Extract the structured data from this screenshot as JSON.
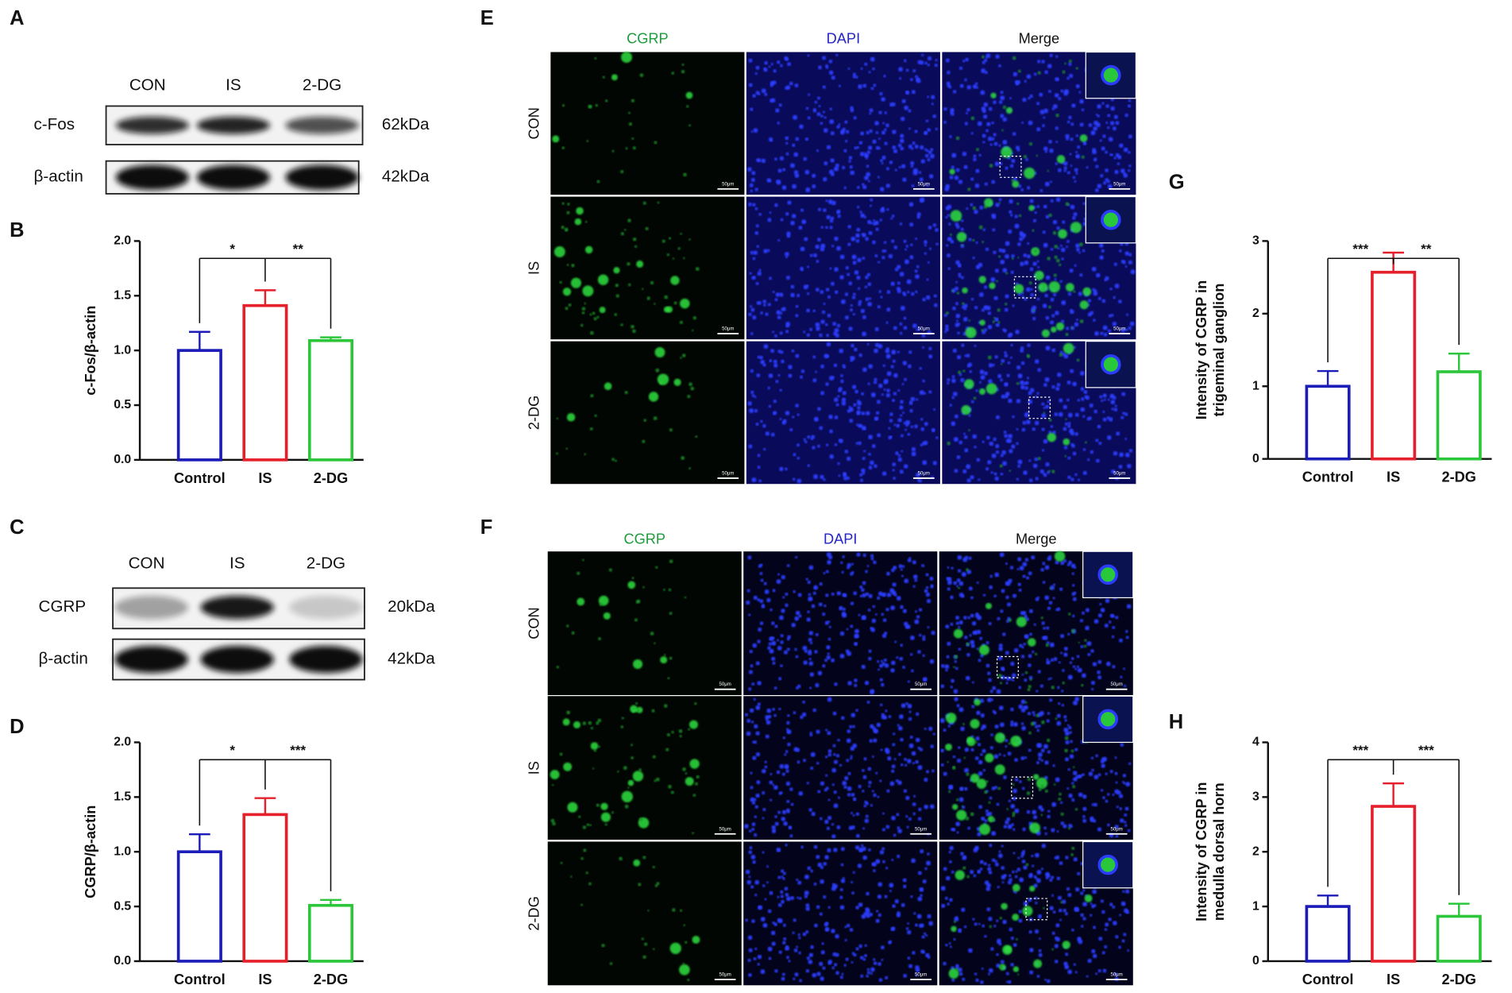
{
  "panel_labels": [
    "A",
    "B",
    "C",
    "D",
    "E",
    "F",
    "G",
    "H"
  ],
  "blots": [
    {
      "lanes": [
        "CON",
        "IS",
        "2-DG"
      ],
      "rows": [
        {
          "protein": "c-Fos",
          "size": "62kDa"
        },
        {
          "protein": "β-actin",
          "size": "42kDa"
        }
      ]
    },
    {
      "lanes": [
        "CON",
        "IS",
        "2-DG"
      ],
      "rows": [
        {
          "protein": "CGRP",
          "size": "20kDa"
        },
        {
          "protein": "β-actin",
          "size": "42kDa"
        }
      ]
    }
  ],
  "micrographs": [
    {
      "channels": [
        "CGRP",
        "DAPI",
        "Merge"
      ],
      "groups": [
        "CON",
        "IS",
        "2-DG"
      ],
      "scale_bar": "50μm"
    },
    {
      "channels": [
        "CGRP",
        "DAPI",
        "Merge"
      ],
      "groups": [
        "CON",
        "IS",
        "2-DG"
      ],
      "scale_bar": "50μm"
    }
  ],
  "chart_data": [
    {
      "type": "bar",
      "y_label": [
        "c-Fos/β-actin"
      ],
      "categories": [
        "Control",
        "IS",
        "2-DG"
      ],
      "values": [
        1.0,
        1.41,
        1.09
      ],
      "errors": [
        0.17,
        0.14,
        0.03
      ],
      "colors": [
        "#1c1cb8",
        "#e6202a",
        "#2bc63a"
      ],
      "ylim": [
        0,
        2
      ],
      "yticks": [
        {
          "value": 0,
          "label": "0.0"
        },
        {
          "value": 0.5,
          "label": "0.5"
        },
        {
          "value": 1,
          "label": "1.0"
        },
        {
          "value": 1.5,
          "label": "1.5"
        },
        {
          "value": 2,
          "label": "2.0"
        }
      ],
      "significance": [
        "*",
        "**"
      ]
    },
    {
      "type": "bar",
      "y_label": [
        "CGRP/β-actin"
      ],
      "categories": [
        "Control",
        "IS",
        "2-DG"
      ],
      "values": [
        1.0,
        1.34,
        0.51
      ],
      "errors": [
        0.16,
        0.15,
        0.05
      ],
      "colors": [
        "#1c1cb8",
        "#e6202a",
        "#2bc63a"
      ],
      "ylim": [
        0,
        2
      ],
      "yticks": [
        {
          "value": 0,
          "label": "0.0"
        },
        {
          "value": 0.5,
          "label": "0.5"
        },
        {
          "value": 1,
          "label": "1.0"
        },
        {
          "value": 1.5,
          "label": "1.5"
        },
        {
          "value": 2,
          "label": "2.0"
        }
      ],
      "significance": [
        "*",
        "***"
      ]
    },
    {
      "type": "bar",
      "y_label": [
        "Intensity of CGRP in",
        "trigeminal ganglion"
      ],
      "categories": [
        "Control",
        "IS",
        "2-DG"
      ],
      "values": [
        1.0,
        2.57,
        1.2
      ],
      "errors": [
        0.21,
        0.27,
        0.25
      ],
      "colors": [
        "#1c1cb8",
        "#e6202a",
        "#2bc63a"
      ],
      "ylim": [
        0,
        3
      ],
      "yticks": [
        0,
        1,
        2,
        3
      ],
      "significance": [
        "***",
        "**"
      ]
    },
    {
      "type": "bar",
      "y_label": [
        "Intensity of CGRP in",
        "medulla dorsal horn"
      ],
      "categories": [
        "Control",
        "IS",
        "2-DG"
      ],
      "values": [
        1.0,
        2.83,
        0.82
      ],
      "errors": [
        0.2,
        0.42,
        0.23
      ],
      "colors": [
        "#1c1cb8",
        "#e6202a",
        "#2bc63a"
      ],
      "ylim": [
        0,
        4
      ],
      "yticks": [
        0,
        1,
        2,
        3,
        4
      ],
      "significance": [
        "***",
        "***"
      ]
    }
  ]
}
